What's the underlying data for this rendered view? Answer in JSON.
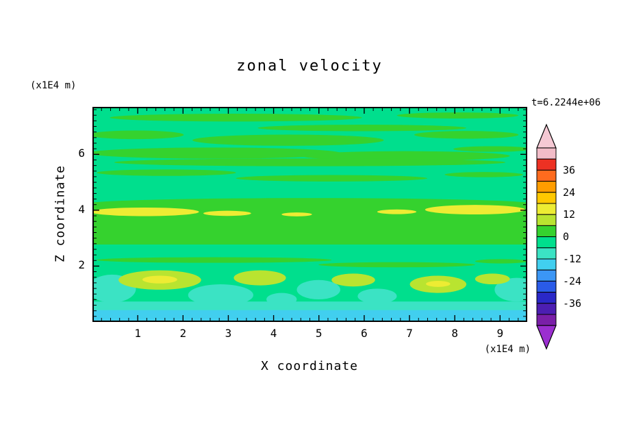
{
  "figure": {
    "title": "zonal velocity",
    "timestamp": "t=6.2244e+06",
    "y_unit": "(x1E4 m)",
    "x_unit": "(x1E4 m)",
    "x_title": "X coordinate",
    "y_title": "Z coordinate"
  },
  "colorbar": {
    "labels": [
      "36",
      "24",
      "12",
      "0",
      "-12",
      "-24",
      "-36"
    ],
    "segment_colors": [
      "#F2BCC8",
      "#ED3123",
      "#FF6B1E",
      "#FF9D00",
      "#FFC800",
      "#EDEC33",
      "#B9E430",
      "#35D22E",
      "#00DF8D",
      "#3BE3C4",
      "#41CFEF",
      "#3B96F5",
      "#2A5BE8",
      "#2A28C8",
      "#4C1EB2",
      "#7A1FA8"
    ],
    "top_arrow_color": "#F5C9D4",
    "bottom_arrow_color": "#9B2FD0"
  },
  "chart_data": {
    "type": "heatmap",
    "title": "zonal velocity",
    "xlabel": "X coordinate (x1E4 m)",
    "ylabel": "Z coordinate (x1E4 m)",
    "time_label": "t=6.2244e+06",
    "xlim": [
      0,
      9.6
    ],
    "ylim": [
      0,
      7.7
    ],
    "x_major_ticks": [
      1,
      2,
      3,
      4,
      5,
      6,
      7,
      8,
      9
    ],
    "y_major_ticks": [
      2,
      4,
      6
    ],
    "minor_tick_step": 0.2,
    "contour_level_step": 6,
    "colorbar_range": [
      -48,
      48
    ],
    "colorbar_labels": [
      36,
      24,
      12,
      0,
      -12,
      -24,
      -36
    ],
    "legend_position": "right",
    "grid": "off",
    "palette": {
      "springGreen": "#00DF8D",
      "green": "#35D22E",
      "yellow": "#EDEC33",
      "yellowGreen": "#B9E430",
      "turquoise": "#3BE3C4",
      "cyan": "#41CFEF"
    },
    "background_level": "springGreen",
    "approx_grid": {
      "x": [
        0.5,
        1.5,
        2.5,
        3.5,
        4.5,
        5.5,
        6.5,
        7.5,
        8.5,
        9.5
      ],
      "z": [
        7.3,
        6.3,
        5.4,
        4.6,
        4.2,
        3.6,
        2.6,
        1.5,
        0.3
      ],
      "values": [
        [
          -2,
          2,
          -2,
          2,
          -2,
          -2,
          2,
          -2,
          2,
          -2
        ],
        [
          2,
          2,
          -2,
          2,
          2,
          -2,
          2,
          2,
          -2,
          2
        ],
        [
          -2,
          2,
          -2,
          -2,
          2,
          -2,
          -2,
          2,
          -2,
          -2
        ],
        [
          2,
          2,
          2,
          2,
          2,
          2,
          2,
          2,
          2,
          2
        ],
        [
          8,
          8,
          2,
          2,
          2,
          2,
          2,
          2,
          8,
          8
        ],
        [
          2,
          2,
          2,
          2,
          2,
          2,
          2,
          2,
          2,
          2
        ],
        [
          -2,
          -2,
          -2,
          -2,
          -2,
          -2,
          -2,
          -2,
          -2,
          -2
        ],
        [
          -8,
          5,
          -2,
          -8,
          5,
          -8,
          -2,
          5,
          -8,
          -8
        ],
        [
          -10,
          -14,
          -10,
          -10,
          -14,
          -10,
          -14,
          -10,
          -10,
          -14
        ]
      ]
    },
    "shapes": [
      {
        "c": "green",
        "t": "e",
        "x": 0.33,
        "y": 0.05,
        "rx": 0.29,
        "ry": 0.018
      },
      {
        "c": "green",
        "t": "e",
        "x": 0.84,
        "y": 0.04,
        "rx": 0.14,
        "ry": 0.014
      },
      {
        "c": "green",
        "t": "e",
        "x": 0.62,
        "y": 0.098,
        "rx": 0.24,
        "ry": 0.015
      },
      {
        "c": "green",
        "t": "e",
        "x": 0.1,
        "y": 0.13,
        "rx": 0.11,
        "ry": 0.02
      },
      {
        "c": "green",
        "t": "e",
        "x": 0.45,
        "y": 0.155,
        "rx": 0.22,
        "ry": 0.026
      },
      {
        "c": "green",
        "t": "e",
        "x": 0.86,
        "y": 0.13,
        "rx": 0.12,
        "ry": 0.018
      },
      {
        "c": "green",
        "t": "e",
        "x": 0.28,
        "y": 0.215,
        "rx": 0.29,
        "ry": 0.026
      },
      {
        "c": "green",
        "t": "e",
        "x": 0.72,
        "y": 0.228,
        "rx": 0.24,
        "ry": 0.022
      },
      {
        "c": "green",
        "t": "e",
        "x": 0.5,
        "y": 0.258,
        "rx": 0.45,
        "ry": 0.018
      },
      {
        "c": "green",
        "t": "e",
        "x": 0.92,
        "y": 0.196,
        "rx": 0.09,
        "ry": 0.013
      },
      {
        "c": "green",
        "t": "e",
        "x": 0.17,
        "y": 0.306,
        "rx": 0.16,
        "ry": 0.015
      },
      {
        "c": "green",
        "t": "e",
        "x": 0.55,
        "y": 0.332,
        "rx": 0.22,
        "ry": 0.015
      },
      {
        "c": "green",
        "t": "e",
        "x": 0.9,
        "y": 0.315,
        "rx": 0.09,
        "ry": 0.012
      },
      {
        "c": "green",
        "t": "r",
        "x": 0,
        "y": 0.455,
        "w": 1,
        "h": 0.185
      },
      {
        "c": "green",
        "t": "e",
        "x": 0.5,
        "y": 0.452,
        "rx": 0.52,
        "ry": 0.028
      },
      {
        "c": "green",
        "t": "e",
        "x": 0.28,
        "y": 0.712,
        "rx": 0.27,
        "ry": 0.013
      },
      {
        "c": "green",
        "t": "e",
        "x": 0.7,
        "y": 0.734,
        "rx": 0.18,
        "ry": 0.012
      },
      {
        "c": "green",
        "t": "e",
        "x": 0.94,
        "y": 0.718,
        "rx": 0.06,
        "ry": 0.01
      },
      {
        "c": "yellow",
        "t": "e",
        "x": 0.12,
        "y": 0.488,
        "rx": 0.125,
        "ry": 0.02
      },
      {
        "c": "yellow",
        "t": "e",
        "x": 0.31,
        "y": 0.495,
        "rx": 0.055,
        "ry": 0.012
      },
      {
        "c": "yellow",
        "t": "e",
        "x": 0.47,
        "y": 0.5,
        "rx": 0.035,
        "ry": 0.009
      },
      {
        "c": "yellow",
        "t": "e",
        "x": 0.7,
        "y": 0.488,
        "rx": 0.045,
        "ry": 0.011
      },
      {
        "c": "yellow",
        "t": "e",
        "x": 0.88,
        "y": 0.478,
        "rx": 0.115,
        "ry": 0.022
      },
      {
        "c": "turquoise",
        "t": "e",
        "x": 0.045,
        "y": 0.845,
        "rx": 0.055,
        "ry": 0.065
      },
      {
        "c": "turquoise",
        "t": "e",
        "x": 0.295,
        "y": 0.875,
        "rx": 0.075,
        "ry": 0.05
      },
      {
        "c": "turquoise",
        "t": "e",
        "x": 0.52,
        "y": 0.85,
        "rx": 0.05,
        "ry": 0.045
      },
      {
        "c": "turquoise",
        "t": "e",
        "x": 0.655,
        "y": 0.88,
        "rx": 0.045,
        "ry": 0.035
      },
      {
        "c": "turquoise",
        "t": "e",
        "x": 0.975,
        "y": 0.85,
        "rx": 0.05,
        "ry": 0.055
      },
      {
        "c": "turquoise",
        "t": "e",
        "x": 0.435,
        "y": 0.895,
        "rx": 0.035,
        "ry": 0.03
      },
      {
        "c": "yellowGreen",
        "t": "e",
        "x": 0.155,
        "y": 0.805,
        "rx": 0.095,
        "ry": 0.045
      },
      {
        "c": "yellowGreen",
        "t": "e",
        "x": 0.385,
        "y": 0.795,
        "rx": 0.06,
        "ry": 0.035
      },
      {
        "c": "yellowGreen",
        "t": "e",
        "x": 0.6,
        "y": 0.805,
        "rx": 0.05,
        "ry": 0.03
      },
      {
        "c": "yellowGreen",
        "t": "e",
        "x": 0.795,
        "y": 0.825,
        "rx": 0.065,
        "ry": 0.04
      },
      {
        "c": "yellowGreen",
        "t": "e",
        "x": 0.92,
        "y": 0.8,
        "rx": 0.04,
        "ry": 0.025
      },
      {
        "c": "yellow",
        "t": "e",
        "x": 0.155,
        "y": 0.803,
        "rx": 0.04,
        "ry": 0.018
      },
      {
        "c": "yellow",
        "t": "e",
        "x": 0.795,
        "y": 0.823,
        "rx": 0.028,
        "ry": 0.014
      },
      {
        "c": "turquoise",
        "t": "r",
        "x": 0,
        "y": 0.905,
        "w": 1,
        "h": 0.048
      },
      {
        "c": "cyan",
        "t": "r",
        "x": 0,
        "y": 0.945,
        "w": 1,
        "h": 0.055
      }
    ]
  }
}
